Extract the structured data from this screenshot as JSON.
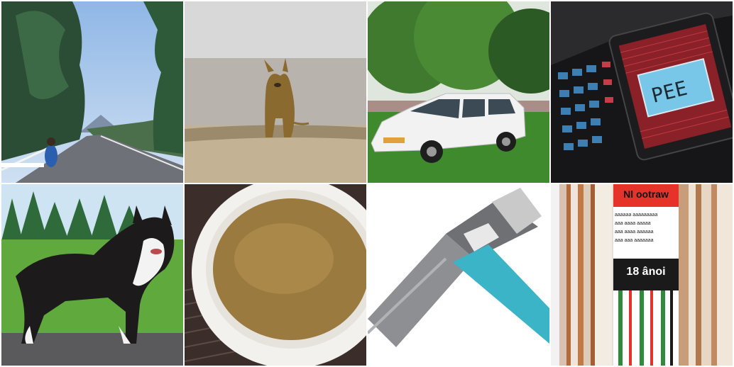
{
  "grid": {
    "rows": 2,
    "cols": 4,
    "background": "#ffffff"
  },
  "tiles": [
    {
      "subject": "road-through-pine-forest",
      "colors": {
        "sky": "#a9c8ea",
        "trees": "#2f5a3a",
        "road": "#6c6f76"
      }
    },
    {
      "subject": "dog-on-sandy-field",
      "colors": {
        "sky": "#d8d8d8",
        "ground": "#bfae93",
        "dog": "#8a6a2f"
      }
    },
    {
      "subject": "white-minivan-on-lawn",
      "colors": {
        "grass": "#3f8a2c",
        "trees": "#2e6a28",
        "car": "#f2f2f2"
      }
    },
    {
      "subject": "keypad-device-with-screen",
      "colors": {
        "body": "#1c1c1e",
        "screen": "#79c7e8",
        "accent": "#a3202a"
      }
    },
    {
      "subject": "collie-dog-on-grass",
      "colors": {
        "sky": "#cfe4f2",
        "grass": "#5fa93d",
        "dog": "#1c1a1a"
      }
    },
    {
      "subject": "bowl-of-broth",
      "colors": {
        "bowl": "#f3f1ee",
        "broth": "#9a7a3e",
        "mat": "#3b2e2a"
      }
    },
    {
      "subject": "pen-tip-closeup",
      "colors": {
        "bg": "#ffffff",
        "barrel": "#3bb4c7",
        "metal": "#8d8f92"
      }
    },
    {
      "subject": "product-box-with-label",
      "label": {
        "title": "Nl ootraw",
        "lines": [
          "aaaaaa aaaaaaaaa",
          "aaa aaaa aaaaa",
          "aaa aaaa aaaaaa",
          "aaa aaa aaaaaaa"
        ],
        "code": "18 ânoi"
      },
      "colors": {
        "label_top": "#e5332a",
        "stripes": "#b36a3c"
      }
    }
  ]
}
